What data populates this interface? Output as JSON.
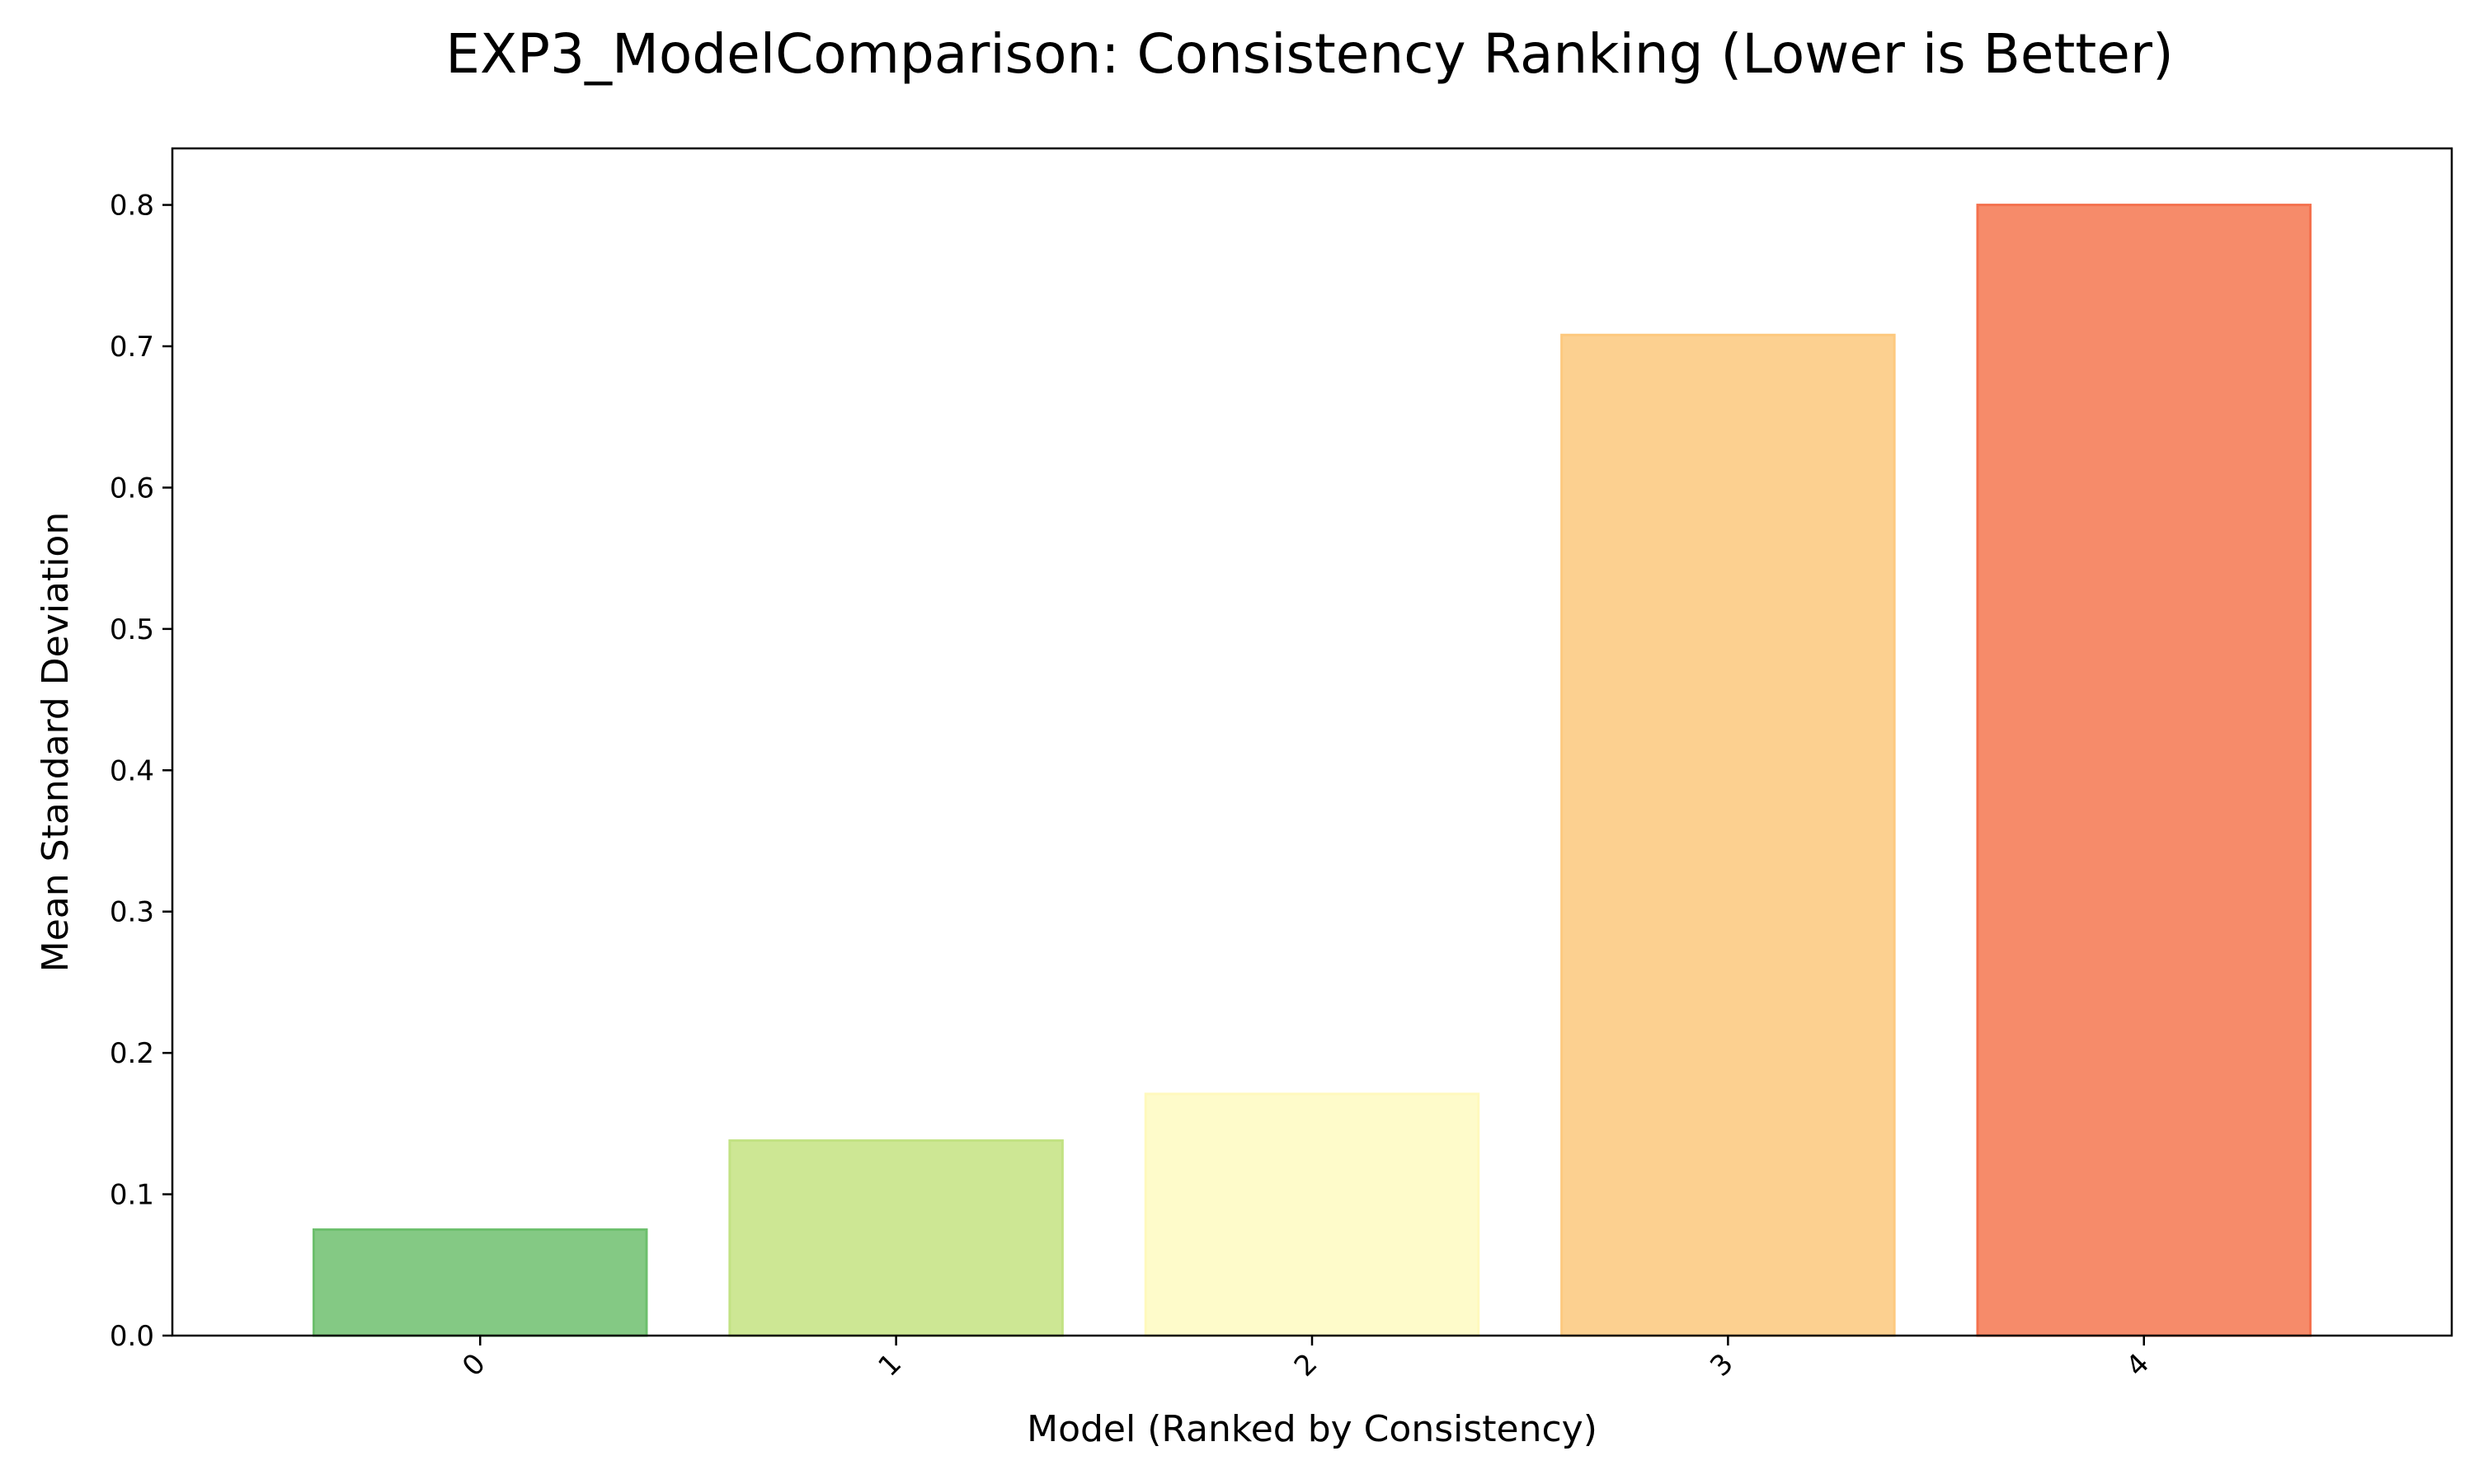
{
  "chart_data": {
    "type": "bar",
    "title": "EXP3_ModelComparison: Consistency Ranking (Lower is Better)",
    "xlabel": "Model (Ranked by Consistency)",
    "ylabel": "Mean Standard Deviation",
    "categories": [
      "0",
      "1",
      "2",
      "3",
      "4"
    ],
    "values": [
      0.075,
      0.138,
      0.171,
      0.708,
      0.8
    ],
    "colors": [
      "#84c984",
      "#cde794",
      "#fefbca",
      "#fcd090",
      "#f68b6a"
    ],
    "edge_colors": [
      "#6dbf6d",
      "#c2e283",
      "#fff9bd",
      "#fdc97f",
      "#f4714e"
    ],
    "ylim": [
      0,
      0.84
    ],
    "yticks": [
      "0.0",
      "0.1",
      "0.2",
      "0.3",
      "0.4",
      "0.5",
      "0.6",
      "0.7",
      "0.8"
    ],
    "grid": false,
    "legend": "none"
  }
}
